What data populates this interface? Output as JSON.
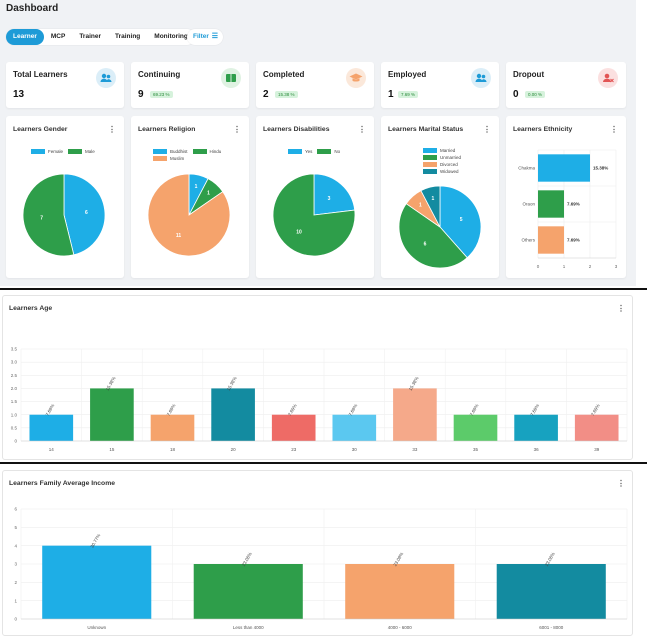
{
  "header": {
    "title": "Dashboard"
  },
  "tabs": [
    {
      "label": "Learner",
      "active": true
    },
    {
      "label": "MCP",
      "active": false
    },
    {
      "label": "Trainer",
      "active": false
    },
    {
      "label": "Training",
      "active": false
    },
    {
      "label": "Monitoring",
      "active": false
    }
  ],
  "filter": {
    "label": "Filter"
  },
  "stats": [
    {
      "label": "Total Learners",
      "value": "13",
      "badge": "",
      "icon": "users-icon",
      "color": "#1e9bd7"
    },
    {
      "label": "Continuing",
      "value": "9",
      "badge": "69.23 %",
      "icon": "book-icon",
      "color": "#2e9e4a"
    },
    {
      "label": "Completed",
      "value": "2",
      "badge": "15.38 %",
      "icon": "graduation-cap-icon",
      "color": "#f5a36c"
    },
    {
      "label": "Employed",
      "value": "1",
      "badge": "7.69 %",
      "icon": "users-icon",
      "color": "#1e9bd7"
    },
    {
      "label": "Dropout",
      "value": "0",
      "badge": "0.00 %",
      "icon": "user-remove-icon",
      "color": "#e25555"
    }
  ],
  "charts_titles": {
    "gender": "Learners Gender",
    "religion": "Learners Religion",
    "disabilities": "Learners Disabilities",
    "marital": "Learners Marital Status",
    "ethnicity": "Learners Ethnicity",
    "age": "Learners Age",
    "income": "Learners Family Average Income"
  },
  "kebab": "⋮",
  "chart_data": [
    {
      "id": "gender",
      "type": "pie",
      "title": "Learners Gender",
      "labels": [
        "Female",
        "Male"
      ],
      "values": [
        6,
        7
      ],
      "colors": [
        "#1eaee6",
        "#2e9e4a"
      ]
    },
    {
      "id": "religion",
      "type": "pie",
      "title": "Learners Religion",
      "labels": [
        "Buddhist",
        "Hindu",
        "Muslim"
      ],
      "values": [
        1,
        1,
        11
      ],
      "colors": [
        "#1eaee6",
        "#2e9e4a",
        "#f5a36c"
      ]
    },
    {
      "id": "disabilities",
      "type": "pie",
      "title": "Learners Disabilities",
      "labels": [
        "Yes",
        "No"
      ],
      "values": [
        3,
        10
      ],
      "colors": [
        "#1eaee6",
        "#2e9e4a"
      ]
    },
    {
      "id": "marital",
      "type": "pie",
      "title": "Learners Marital Status",
      "labels": [
        "Married",
        "Unmarried",
        "Divorced",
        "Widowed"
      ],
      "values": [
        5,
        6,
        1,
        1
      ],
      "colors": [
        "#1eaee6",
        "#2e9e4a",
        "#f5a36c",
        "#138ba0"
      ]
    },
    {
      "id": "ethnicity",
      "type": "bar",
      "orientation": "horizontal",
      "title": "Learners Ethnicity",
      "categories": [
        "Chakma",
        "Oraon",
        "Others"
      ],
      "values": [
        2,
        1,
        1
      ],
      "data_labels": [
        "15.38%",
        "7.69%",
        "7.69%"
      ],
      "colors": [
        "#1eaee6",
        "#2e9e4a",
        "#f5a36c"
      ],
      "xlim": [
        0,
        3
      ],
      "xticks": [
        "0",
        "1",
        "2",
        "3"
      ]
    },
    {
      "id": "age",
      "type": "bar",
      "title": "Learners Age",
      "categories": [
        "14",
        "15",
        "18",
        "20",
        "23",
        "30",
        "33",
        "35",
        "36",
        "39"
      ],
      "values": [
        1,
        2,
        1,
        2,
        1,
        1,
        2,
        1,
        1,
        1
      ],
      "data_labels": [
        "7.69%",
        "15.38%",
        "7.69%",
        "15.38%",
        "7.69%",
        "7.69%",
        "15.38%",
        "7.69%",
        "7.69%",
        "7.69%"
      ],
      "colors": [
        "#1eaee6",
        "#2e9e4a",
        "#f5a36c",
        "#138ba0",
        "#ee6b66",
        "#5bc8f0",
        "#f5a98a",
        "#5ccb6a",
        "#17a2c0",
        "#f28e86"
      ],
      "ylim": [
        0,
        3.5
      ],
      "yticks": [
        "0",
        "0.5",
        "1.0",
        "1.5",
        "2.0",
        "2.5",
        "3.0",
        "3.5"
      ]
    },
    {
      "id": "income",
      "type": "bar",
      "title": "Learners Family Average Income",
      "categories": [
        "Unknown",
        "Less than 4000",
        "4000 - 6000",
        "6001 - 8000"
      ],
      "values": [
        4,
        3,
        3,
        3
      ],
      "data_labels": [
        "30.77%",
        "23.08%",
        "23.08%",
        "23.08%"
      ],
      "colors": [
        "#1eaee6",
        "#2e9e4a",
        "#f5a36c",
        "#138ba0"
      ],
      "ylim": [
        0,
        6
      ],
      "yticks": [
        "0",
        "1",
        "2",
        "3",
        "4",
        "5",
        "6"
      ]
    }
  ]
}
